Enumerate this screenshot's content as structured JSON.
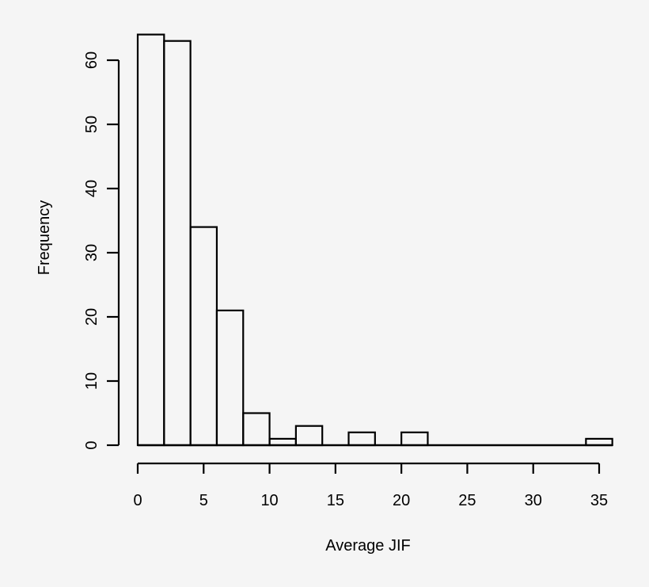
{
  "chart_data": {
    "type": "bar",
    "title": "",
    "xlabel": "Average JIF",
    "ylabel": "Frequency",
    "bin_width": 2,
    "bins": [
      [
        0,
        2
      ],
      [
        2,
        4
      ],
      [
        4,
        6
      ],
      [
        6,
        8
      ],
      [
        8,
        10
      ],
      [
        10,
        12
      ],
      [
        12,
        14
      ],
      [
        14,
        16
      ],
      [
        16,
        18
      ],
      [
        18,
        20
      ],
      [
        20,
        22
      ],
      [
        22,
        24
      ],
      [
        24,
        26
      ],
      [
        26,
        28
      ],
      [
        28,
        30
      ],
      [
        30,
        32
      ],
      [
        32,
        34
      ],
      [
        34,
        36
      ]
    ],
    "values": [
      64,
      63,
      34,
      21,
      5,
      1,
      3,
      0,
      2,
      0,
      2,
      0,
      0,
      0,
      0,
      0,
      0,
      1
    ],
    "xlim": [
      0,
      36
    ],
    "ylim": [
      0,
      64
    ],
    "xticks": [
      0,
      5,
      10,
      15,
      20,
      25,
      30,
      35
    ],
    "yticks": [
      0,
      10,
      20,
      30,
      40,
      50,
      60
    ],
    "grid": false
  },
  "labels": {
    "xlabel": "Average JIF",
    "ylabel": "Frequency",
    "xticks": [
      "0",
      "5",
      "10",
      "15",
      "20",
      "25",
      "30",
      "35"
    ],
    "yticks": [
      "0",
      "10",
      "20",
      "30",
      "40",
      "50",
      "60"
    ]
  }
}
